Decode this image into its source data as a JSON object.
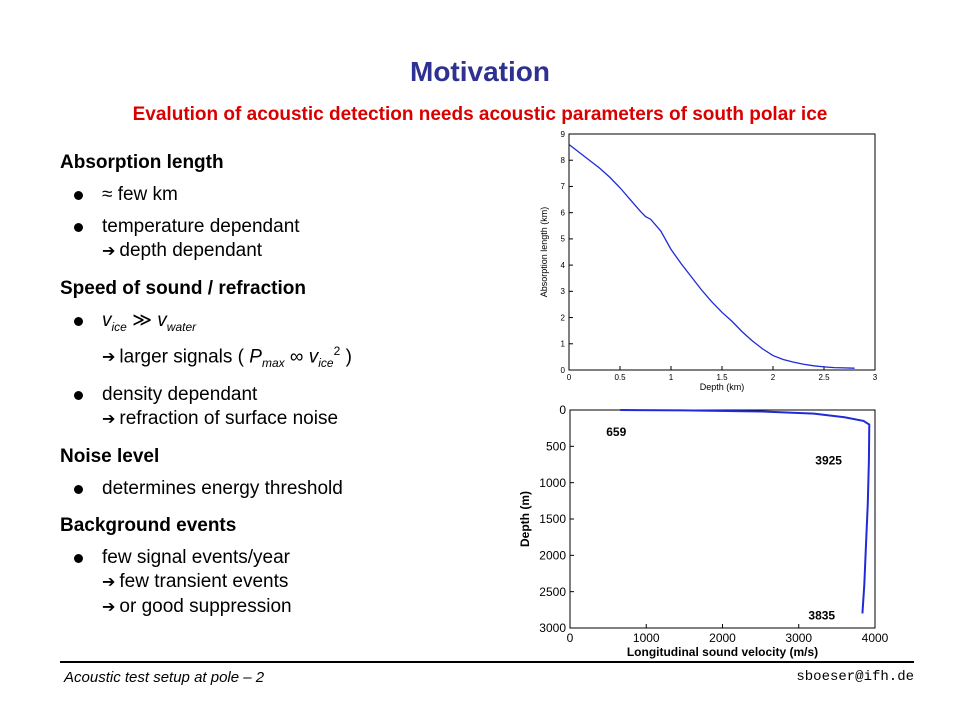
{
  "title": "Motivation",
  "subtitle": "Evalution of acoustic detection needs acoustic parameters of south polar ice",
  "sections": {
    "absorption": {
      "heading": "Absorption length",
      "item1": "≈ few km",
      "item2_line1": "temperature dependant",
      "item2_line2": "depth dependant"
    },
    "speed": {
      "heading": "Speed of sound / refraction",
      "v": "v",
      "sub_ice": "ice",
      "sub_water": "water",
      "gg": " ≫ ",
      "line2_prefix": "larger signals ( ",
      "p": "P",
      "sub_max": "max",
      "propto": " ∞ ",
      "sup_2": "2",
      "close": " )",
      "item2_line1": "density dependant",
      "item2_line2": "refraction of surface noise"
    },
    "noise": {
      "heading": "Noise level",
      "item1": "determines energy threshold"
    },
    "background": {
      "heading": "Background events",
      "line1": "few signal events/year",
      "line2": "few transient events",
      "line3": "or good suppression"
    }
  },
  "arrow": "➔",
  "footer": {
    "left": "Acoustic test setup at pole – 2",
    "right": "sboeser@ifh.de"
  },
  "colors": {
    "title": "#2e3192",
    "subtitle": "#d90000",
    "curve": "#1f2bd6"
  },
  "chart_data": [
    {
      "type": "line",
      "xlabel": "Depth (km)",
      "ylabel": "Absorption length (km)",
      "xlim": [
        0,
        3
      ],
      "ylim": [
        0,
        9
      ],
      "xticks": [
        "0",
        "0.5",
        "1",
        "1.5",
        "2",
        "2.5",
        "3"
      ],
      "yticks": [
        "0",
        "1",
        "2",
        "3",
        "4",
        "5",
        "6",
        "7",
        "8",
        "9"
      ],
      "series": [
        {
          "x": [
            0,
            0.1,
            0.2,
            0.3,
            0.4,
            0.5,
            0.6,
            0.7,
            0.75,
            0.8,
            0.9,
            1.0,
            1.1,
            1.2,
            1.3,
            1.4,
            1.5,
            1.6,
            1.7,
            1.8,
            1.9,
            2.0,
            2.1,
            2.2,
            2.3,
            2.4,
            2.5,
            2.6,
            2.7,
            2.8
          ],
          "y": [
            8.6,
            8.3,
            8.0,
            7.7,
            7.35,
            6.95,
            6.5,
            6.05,
            5.85,
            5.75,
            5.3,
            4.6,
            4.05,
            3.55,
            3.05,
            2.6,
            2.2,
            1.85,
            1.45,
            1.1,
            0.8,
            0.55,
            0.4,
            0.3,
            0.22,
            0.16,
            0.12,
            0.09,
            0.08,
            0.07
          ]
        }
      ]
    },
    {
      "type": "line",
      "xlabel": "Longitudinal sound velocity (m/s)",
      "ylabel": "Depth (m)",
      "xlim": [
        0,
        4000
      ],
      "ylim": [
        3000,
        0
      ],
      "xticks": [
        "0",
        "1000",
        "2000",
        "3000",
        "4000"
      ],
      "yticks": [
        "0",
        "500",
        "1000",
        "1500",
        "2000",
        "2500",
        "3000"
      ],
      "annotations": [
        "659",
        "3925",
        "3835"
      ],
      "series": [
        {
          "x": [
            659,
            1500,
            2500,
            3200,
            3600,
            3850,
            3925,
            3920,
            3905,
            3880,
            3860,
            3835
          ],
          "y": [
            0,
            5,
            20,
            50,
            100,
            150,
            200,
            700,
            1300,
            1900,
            2400,
            2800
          ]
        }
      ]
    }
  ]
}
